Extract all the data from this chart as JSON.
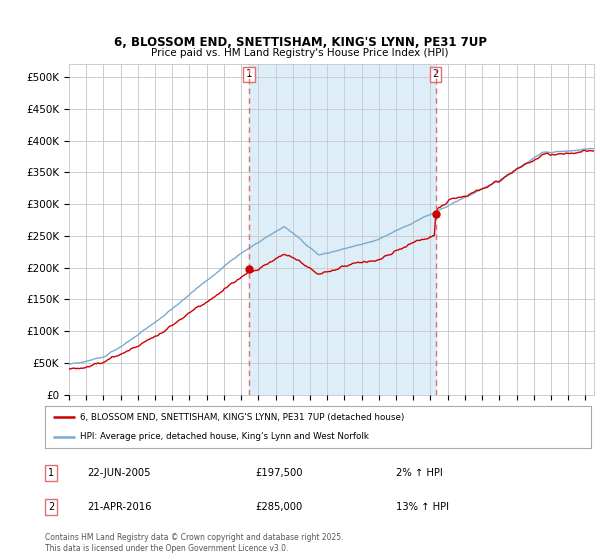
{
  "title_line1": "6, BLOSSOM END, SNETTISHAM, KING'S LYNN, PE31 7UP",
  "title_line2": "Price paid vs. HM Land Registry's House Price Index (HPI)",
  "ylim": [
    0,
    520000
  ],
  "yticks": [
    0,
    50000,
    100000,
    150000,
    200000,
    250000,
    300000,
    350000,
    400000,
    450000,
    500000
  ],
  "ytick_labels": [
    "£0",
    "£50K",
    "£100K",
    "£150K",
    "£200K",
    "£250K",
    "£300K",
    "£350K",
    "£400K",
    "£450K",
    "£500K"
  ],
  "x_start_year": 1995,
  "x_end_year": 2025,
  "marker1_year": 2005.47,
  "marker2_year": 2016.3,
  "marker1_price": 197500,
  "marker2_price": 285000,
  "legend_line1": "6, BLOSSOM END, SNETTISHAM, KING'S LYNN, PE31 7UP (detached house)",
  "legend_line2": "HPI: Average price, detached house, King's Lynn and West Norfolk",
  "annotation1_date": "22-JUN-2005",
  "annotation1_price": "£197,500",
  "annotation1_hpi": "2% ↑ HPI",
  "annotation2_date": "21-APR-2016",
  "annotation2_price": "£285,000",
  "annotation2_hpi": "13% ↑ HPI",
  "footer": "Contains HM Land Registry data © Crown copyright and database right 2025.\nThis data is licensed under the Open Government Licence v3.0.",
  "red_color": "#cc0000",
  "blue_color": "#7aabcf",
  "shade_color": "#ddeef8",
  "marker_line_color": "#e07070",
  "grid_color": "#cccccc",
  "background_color": "#ffffff",
  "dot_color": "#cc0000"
}
